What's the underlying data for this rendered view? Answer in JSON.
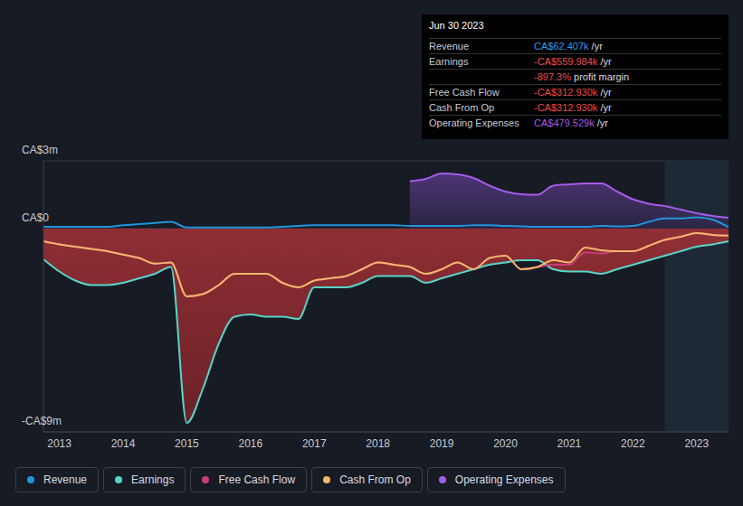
{
  "chart_data": {
    "type": "line",
    "x": [
      2012.75,
      2013,
      2013.25,
      2013.5,
      2013.75,
      2014,
      2014.25,
      2014.5,
      2014.75,
      2015,
      2015.25,
      2015.5,
      2015.75,
      2016,
      2016.25,
      2016.5,
      2016.75,
      2017,
      2017.25,
      2017.5,
      2017.75,
      2018,
      2018.25,
      2018.5,
      2018.75,
      2019,
      2019.25,
      2019.5,
      2019.75,
      2020,
      2020.25,
      2020.5,
      2020.75,
      2021,
      2021.25,
      2021.5,
      2021.75,
      2022,
      2022.25,
      2022.5,
      2022.75,
      2023,
      2023.25,
      2023.5
    ],
    "xlim": [
      2012.75,
      2023.5
    ],
    "xticks": [
      2013,
      2014,
      2015,
      2016,
      2017,
      2018,
      2019,
      2020,
      2021,
      2022,
      2023
    ],
    "ylim": [
      -9,
      3
    ],
    "yticks": [
      {
        "value": 3,
        "label": "CA$3m"
      },
      {
        "value": 0,
        "label": "CA$0"
      },
      {
        "value": -9,
        "label": "-CA$9m"
      }
    ],
    "grid": true,
    "series": [
      {
        "name": "Operating Expenses",
        "color": "#a55be8",
        "type": "area",
        "values": [
          null,
          null,
          null,
          null,
          null,
          null,
          null,
          null,
          null,
          null,
          null,
          null,
          null,
          null,
          null,
          null,
          null,
          null,
          null,
          null,
          null,
          null,
          null,
          2.1,
          2.2,
          2.44,
          2.4,
          2.24,
          1.9,
          1.64,
          1.52,
          1.5,
          1.9,
          1.96,
          2.0,
          2.0,
          1.64,
          1.3,
          1.1,
          1.0,
          0.84,
          0.68,
          0.56,
          0.48
        ]
      },
      {
        "name": "Earnings",
        "color": "#58d5c9",
        "type": "area",
        "values": [
          -1.36,
          -1.9,
          -2.3,
          -2.5,
          -2.5,
          -2.4,
          -2.2,
          -2.0,
          -1.7,
          -8.6,
          -7.1,
          -5.1,
          -3.9,
          -3.8,
          -3.9,
          -3.9,
          -4.0,
          -2.6,
          -2.6,
          -2.6,
          -2.4,
          -2.1,
          -2.1,
          -2.1,
          -2.4,
          -2.2,
          -2.0,
          -1.8,
          -1.6,
          -1.5,
          -1.4,
          -1.4,
          -1.8,
          -1.9,
          -1.9,
          -2.0,
          -1.8,
          -1.6,
          -1.4,
          -1.2,
          -1.0,
          -0.8,
          -0.7,
          -0.56
        ]
      },
      {
        "name": "Revenue",
        "color": "#2394df",
        "type": "line",
        "values": [
          0.08,
          0.08,
          0.08,
          0.08,
          0.08,
          0.15,
          0.2,
          0.25,
          0.3,
          0.05,
          0.05,
          0.05,
          0.05,
          0.05,
          0.05,
          0.08,
          0.12,
          0.15,
          0.15,
          0.15,
          0.15,
          0.15,
          0.15,
          0.12,
          0.12,
          0.12,
          0.12,
          0.15,
          0.15,
          0.12,
          0.1,
          0.08,
          0.08,
          0.08,
          0.08,
          0.12,
          0.1,
          0.12,
          0.3,
          0.45,
          0.45,
          0.5,
          0.4,
          0.06
        ]
      },
      {
        "name": "Free Cash Flow",
        "color": "#c83e7a",
        "type": "line",
        "values": [
          -0.56,
          -0.7,
          -0.8,
          -0.9,
          -1.0,
          -1.15,
          -1.3,
          -1.55,
          -1.5,
          -3.0,
          -2.9,
          -2.5,
          -2.0,
          -2.0,
          -2.0,
          -2.4,
          -2.6,
          -2.3,
          -2.2,
          -2.1,
          -1.8,
          -1.5,
          -1.6,
          -1.7,
          -2.0,
          -1.8,
          -1.5,
          -1.8,
          -1.3,
          -1.2,
          -1.8,
          -1.7,
          -1.6,
          -1.6,
          -1.05,
          -1.1,
          -1.0,
          -1.0,
          -0.76,
          -0.5,
          -0.36,
          -0.2,
          -0.28,
          -0.31
        ]
      },
      {
        "name": "Cash From Op",
        "color": "#f3b76a",
        "type": "line",
        "values": [
          -0.56,
          -0.7,
          -0.8,
          -0.9,
          -1.0,
          -1.15,
          -1.3,
          -1.55,
          -1.5,
          -3.0,
          -2.9,
          -2.5,
          -2.0,
          -2.0,
          -2.0,
          -2.4,
          -2.6,
          -2.3,
          -2.2,
          -2.1,
          -1.8,
          -1.5,
          -1.6,
          -1.7,
          -2.0,
          -1.8,
          -1.5,
          -1.8,
          -1.3,
          -1.2,
          -1.8,
          -1.7,
          -1.4,
          -1.5,
          -0.84,
          -0.96,
          -1.0,
          -1.0,
          -0.76,
          -0.5,
          -0.36,
          -0.2,
          -0.28,
          -0.31
        ]
      }
    ],
    "legend": "bottom",
    "legend_order": [
      "Revenue",
      "Earnings",
      "Free Cash Flow",
      "Cash From Op",
      "Operating Expenses"
    ],
    "tooltip": {
      "title": "Jun 30 2023",
      "rows": [
        {
          "label": "Revenue",
          "value": "CA$62.407k",
          "unit": "/yr",
          "color": "#2f9bf0"
        },
        {
          "label": "Earnings",
          "value": "-CA$559.984k",
          "unit": "/yr",
          "color": "#ec4a4f"
        },
        {
          "value": "-897.3%",
          "unit": "profit margin",
          "color": "#ec4a4f"
        },
        {
          "label": "Free Cash Flow",
          "value": "-CA$312.930k",
          "unit": "/yr",
          "color": "#ec4a4f"
        },
        {
          "label": "Cash From Op",
          "value": "-CA$312.930k",
          "unit": "/yr",
          "color": "#ec4a4f"
        },
        {
          "label": "Operating Expenses",
          "value": "CA$479.529k",
          "unit": "/yr",
          "color": "#a55be8"
        }
      ]
    }
  }
}
